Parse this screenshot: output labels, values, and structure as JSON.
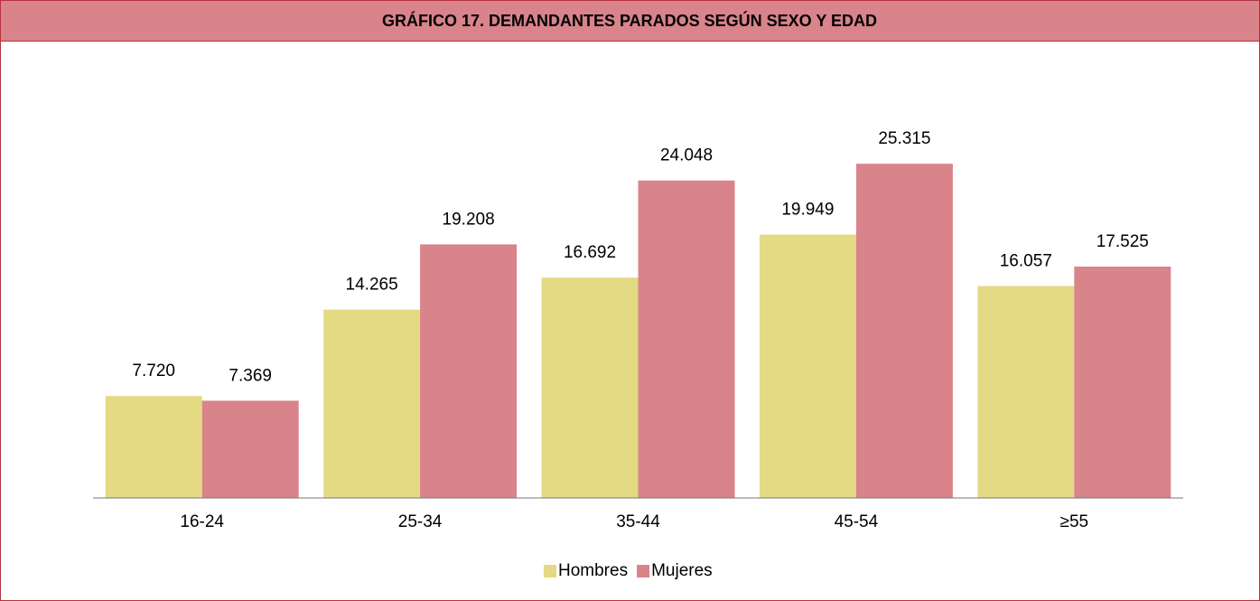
{
  "chart_data": {
    "type": "bar",
    "title": "GRÁFICO 17. DEMANDANTES PARADOS SEGÚN SEXO Y EDAD",
    "categories": [
      "16-24",
      "25-34",
      "35-44",
      "45-54",
      "≥55"
    ],
    "series": [
      {
        "name": "Hombres",
        "color": "#e3da83",
        "values": [
          7720,
          14265,
          16692,
          19949,
          16057
        ],
        "value_labels": [
          "7.720",
          "14.265",
          "16.692",
          "19.949",
          "16.057"
        ]
      },
      {
        "name": "Mujeres",
        "color": "#d9838b",
        "values": [
          7369,
          19208,
          24048,
          25315,
          17525
        ],
        "value_labels": [
          "7.369",
          "19.208",
          "24.048",
          "25.315",
          "17.525"
        ]
      }
    ],
    "ylim": [
      0,
      28000
    ],
    "legend": "bottom"
  }
}
